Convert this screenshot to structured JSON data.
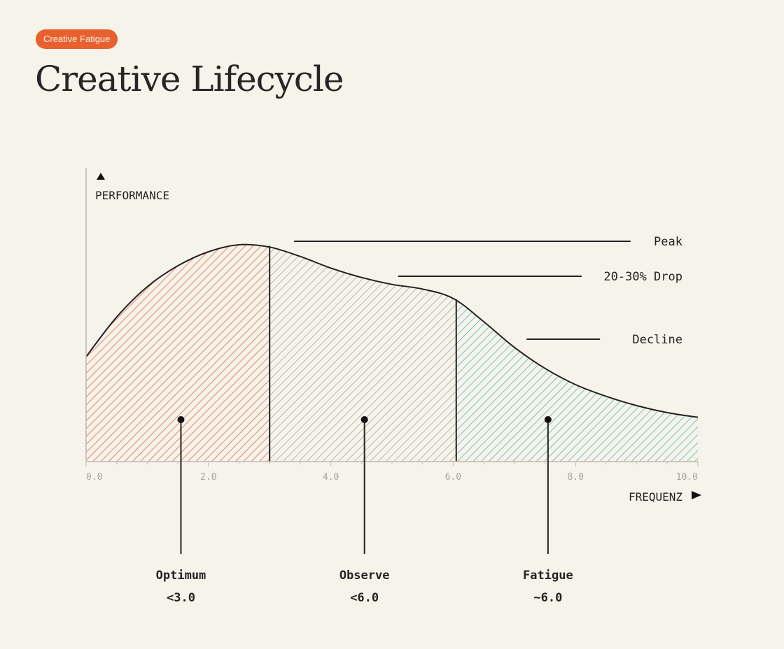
{
  "badge": "Creative Fatigue",
  "title": "Creative Lifecycle",
  "colors": {
    "background": "#f6f3ea",
    "badge": "#e8602e",
    "optimum": "#e0603e",
    "observe": "#a8a39a",
    "fatigue": "#4fb3b1",
    "ink": "#222222",
    "axis_tick": "#a9a59c"
  },
  "chart_data": {
    "type": "area",
    "ylabel": "PERFORMANCE",
    "xlabel": "FREQUENZ",
    "xlim": [
      0,
      10
    ],
    "ylim": [
      0,
      1
    ],
    "x_ticks": [
      "0.0",
      "2.0",
      "4.0",
      "6.0",
      "8.0",
      "10.0"
    ],
    "grid": false,
    "curve": {
      "x": [
        0,
        0.5,
        1,
        1.5,
        2,
        2.5,
        3,
        3.5,
        4,
        4.5,
        5,
        5.5,
        6,
        6.5,
        7,
        7.5,
        8,
        8.5,
        9,
        9.5,
        10
      ],
      "y": [
        0.45,
        0.62,
        0.75,
        0.84,
        0.9,
        0.93,
        0.92,
        0.88,
        0.83,
        0.79,
        0.76,
        0.74,
        0.7,
        0.6,
        0.49,
        0.4,
        0.33,
        0.28,
        0.24,
        0.21,
        0.19
      ]
    },
    "zones": [
      {
        "label": "Optimum",
        "range_label": "<3.0",
        "x_start": 0,
        "x_end": 3.0,
        "marker_x": 1.55,
        "color": "#e0603e"
      },
      {
        "label": "Observe",
        "range_label": "<6.0",
        "x_start": 3.0,
        "x_end": 6.05,
        "marker_x": 4.55,
        "color": "#a8a39a"
      },
      {
        "label": "Fatigue",
        "range_label": "~6.0",
        "x_start": 6.05,
        "x_end": 10,
        "marker_x": 7.55,
        "color": "#4fb3b1"
      }
    ],
    "annotations": [
      {
        "text": "Peak",
        "x_start": 3.4,
        "x_end": 8.9,
        "y": 0.945
      },
      {
        "text": "20-30% Drop",
        "x_start": 5.1,
        "x_end": 8.1,
        "y": 0.795
      },
      {
        "text": "Decline",
        "x_start": 7.2,
        "x_end": 8.4,
        "y": 0.525
      }
    ]
  }
}
